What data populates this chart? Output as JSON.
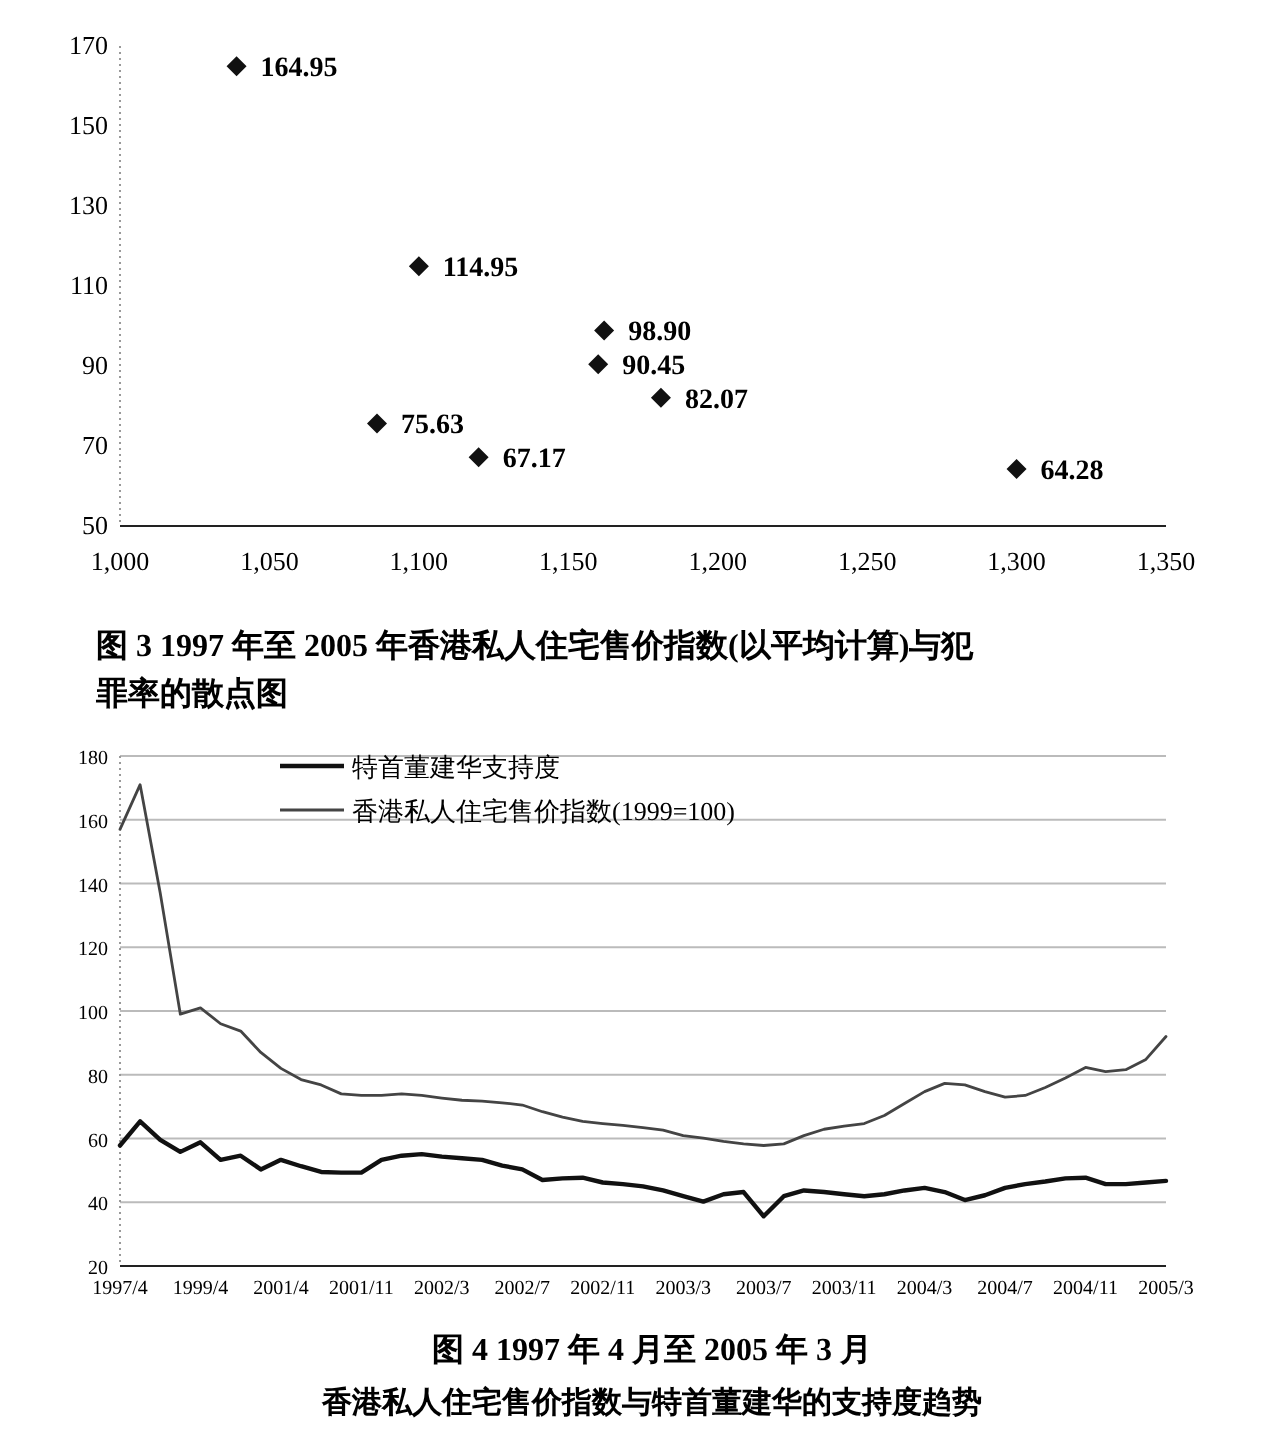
{
  "chart_data": [
    {
      "type": "scatter",
      "title": "图 3  1997 年至 2005 年香港私人住宅售价指数(以平均计算)与犯罪率的散点图",
      "x": [
        1039,
        1100,
        1162,
        1160,
        1181,
        1086,
        1120,
        1300
      ],
      "values": [
        164.95,
        114.95,
        98.9,
        90.45,
        82.07,
        75.63,
        67.17,
        64.28
      ],
      "value_labels": [
        "164.95",
        "114.95",
        "98.90",
        "90.45",
        "82.07",
        "75.63",
        "67.17",
        "64.28"
      ],
      "color": "#111111",
      "marker": "diamond",
      "xlim": [
        1000,
        1350
      ],
      "xticks": [
        {
          "value": 1000,
          "label": "1,000"
        },
        {
          "value": 1050,
          "label": "1,050"
        },
        {
          "value": 1100,
          "label": "1,100"
        },
        {
          "value": 1150,
          "label": "1,150"
        },
        {
          "value": 1200,
          "label": "1,200"
        },
        {
          "value": 1250,
          "label": "1,250"
        },
        {
          "value": 1300,
          "label": "1,300"
        },
        {
          "value": 1350,
          "label": "1,350"
        }
      ],
      "ylim": [
        50,
        170
      ],
      "yticks": [
        50,
        70,
        90,
        110,
        130,
        150,
        170
      ],
      "grid": false
    },
    {
      "type": "line",
      "title": "图 4  1997 年 4 月至 2005 年 3 月",
      "subtitle": "香港私人住宅售价指数与特首董建华的支持度趋势",
      "categories": [
        "1997/4",
        null,
        null,
        null,
        "1999/4",
        null,
        null,
        null,
        "2001/4",
        null,
        null,
        null,
        "2001/11",
        null,
        null,
        null,
        "2002/3",
        null,
        null,
        null,
        "2002/7",
        null,
        null,
        null,
        "2002/11",
        null,
        null,
        null,
        "2003/3",
        null,
        null,
        null,
        "2003/7",
        null,
        null,
        null,
        "2003/11",
        null,
        null,
        null,
        "2004/3",
        null,
        null,
        null,
        "2004/7",
        null,
        null,
        null,
        "2004/11",
        null,
        null,
        null,
        "2005/3"
      ],
      "series": [
        {
          "name": "特首董建华支持度",
          "color": "#111111",
          "values": [
            57.8,
            65.4,
            59.6,
            55.8,
            58.8,
            53.3,
            54.6,
            50.3,
            53.3,
            51.3,
            49.5,
            49.3,
            49.3,
            53.3,
            54.6,
            55.1,
            54.3,
            53.8,
            53.3,
            51.5,
            50.3,
            47,
            47.5,
            47.7,
            46.2,
            45.7,
            45,
            43.7,
            41.9,
            40.2,
            42.5,
            43.2,
            35.6,
            41.9,
            43.7,
            43.2,
            42.5,
            41.9,
            42.5,
            43.7,
            44.5,
            43.2,
            40.7,
            42.2,
            44.5,
            45.7,
            46.5,
            47.5,
            47.7,
            45.7,
            45.7,
            46.2,
            46.7
          ]
        },
        {
          "name": "香港私人住宅售价指数(1999=100)",
          "color": "#444444",
          "values": [
            157,
            171,
            137,
            99,
            101,
            96,
            93.7,
            87,
            82,
            78.5,
            76.8,
            74,
            73.5,
            73.5,
            74,
            73.5,
            72.7,
            72,
            71.7,
            71.2,
            70.5,
            68.4,
            66.7,
            65.4,
            64.7,
            64.1,
            63.4,
            62.6,
            60.9,
            60.1,
            59.1,
            58.3,
            57.8,
            58.3,
            60.9,
            62.9,
            63.9,
            64.7,
            67.2,
            71,
            74.7,
            77.3,
            76.8,
            74.7,
            73,
            73.5,
            76,
            79,
            82.3,
            81,
            81.6,
            84.8,
            92
          ]
        }
      ],
      "ylim": [
        20,
        180
      ],
      "yticks": [
        20,
        40,
        60,
        80,
        100,
        120,
        140,
        160,
        180
      ],
      "grid": "y",
      "legend": "top left",
      "marker": "none",
      "line_style": "solid"
    }
  ]
}
